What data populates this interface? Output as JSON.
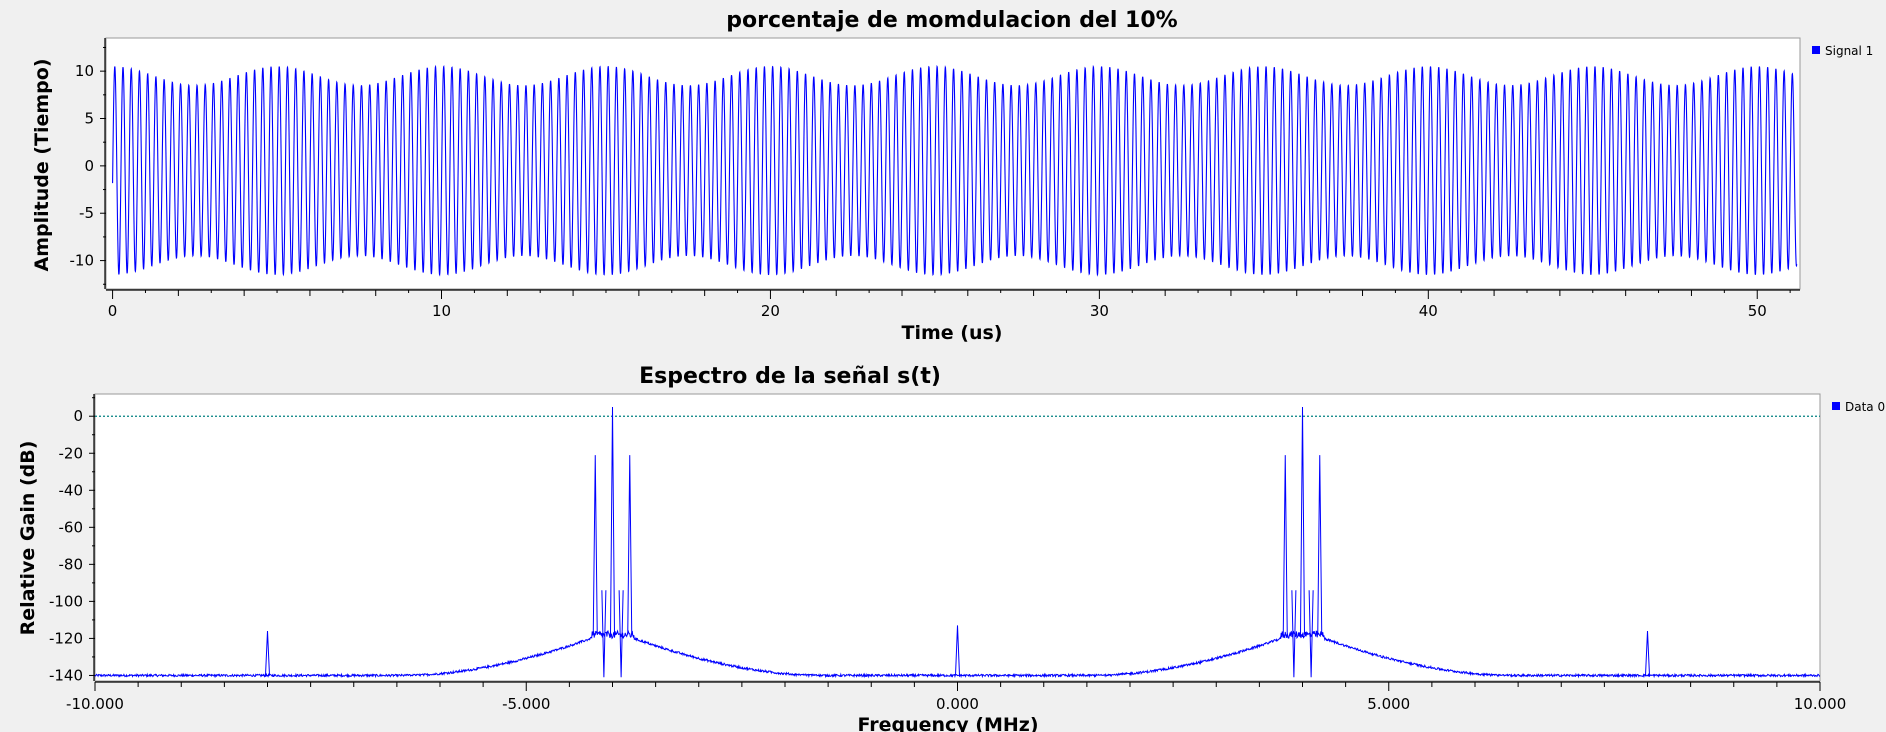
{
  "chart_data": [
    {
      "type": "line",
      "title": "porcentaje de momdulacion del 10%",
      "xlabel": "Time (us)",
      "ylabel": "Amplitude (Tiempo)",
      "xlim": [
        -0.2,
        51.3
      ],
      "ylim": [
        -13,
        13.5
      ],
      "xticks": [
        0,
        10,
        20,
        30,
        40,
        50
      ],
      "xtick_labels": [
        "0",
        "10",
        "20",
        "30",
        "40",
        "50"
      ],
      "yticks": [
        10,
        5,
        0,
        -5,
        -10
      ],
      "ytick_labels": [
        "10",
        "5",
        "0",
        "-5",
        "-10"
      ],
      "grid": false,
      "legend": "right",
      "series": [
        {
          "name": "Signal 1",
          "color": "#0000ff",
          "model": "carrier 4 MHz, envelope 10 ± 1 (10% AM), 200 kHz modulating tone",
          "carrier_freq_mhz": 4,
          "mod_freq_mhz": 0.2,
          "carrier_amplitude": 10,
          "mod_index": 0.1,
          "offset": -0.5,
          "t_range_us": [
            0,
            51.2
          ]
        }
      ]
    },
    {
      "type": "line",
      "title": "Espectro de la señal s(t)",
      "xlabel": "Frequency (MHz)",
      "ylabel": "Relative Gain (dB)",
      "xlim": [
        -10,
        10
      ],
      "ylim": [
        -143,
        12
      ],
      "xticks": [
        -10,
        -5,
        0,
        5,
        10
      ],
      "xtick_labels": [
        "-10.000",
        "-5.000",
        "0.000",
        "5.000",
        "10.000"
      ],
      "yticks": [
        0,
        -20,
        -40,
        -60,
        -80,
        -100,
        -120,
        -140
      ],
      "ytick_labels": [
        "0",
        "-20",
        "-40",
        "-60",
        "-80",
        "-100",
        "-120",
        "-140"
      ],
      "grid": false,
      "legend": "right",
      "reference_line_db": 0,
      "reference_color": "#008080",
      "series": [
        {
          "name": "Data 0",
          "color": "#0000ff",
          "noise_floor_db": -140,
          "peaks": [
            {
              "f": -8.0,
              "db": -116
            },
            {
              "f": -4.2,
              "db": -21
            },
            {
              "f": -4.0,
              "db": 5
            },
            {
              "f": -3.8,
              "db": -21
            },
            {
              "f": 0.0,
              "db": -113
            },
            {
              "f": 3.8,
              "db": -21
            },
            {
              "f": 4.0,
              "db": 5
            },
            {
              "f": 4.2,
              "db": -21
            },
            {
              "f": 8.0,
              "db": -116
            }
          ]
        }
      ]
    }
  ]
}
